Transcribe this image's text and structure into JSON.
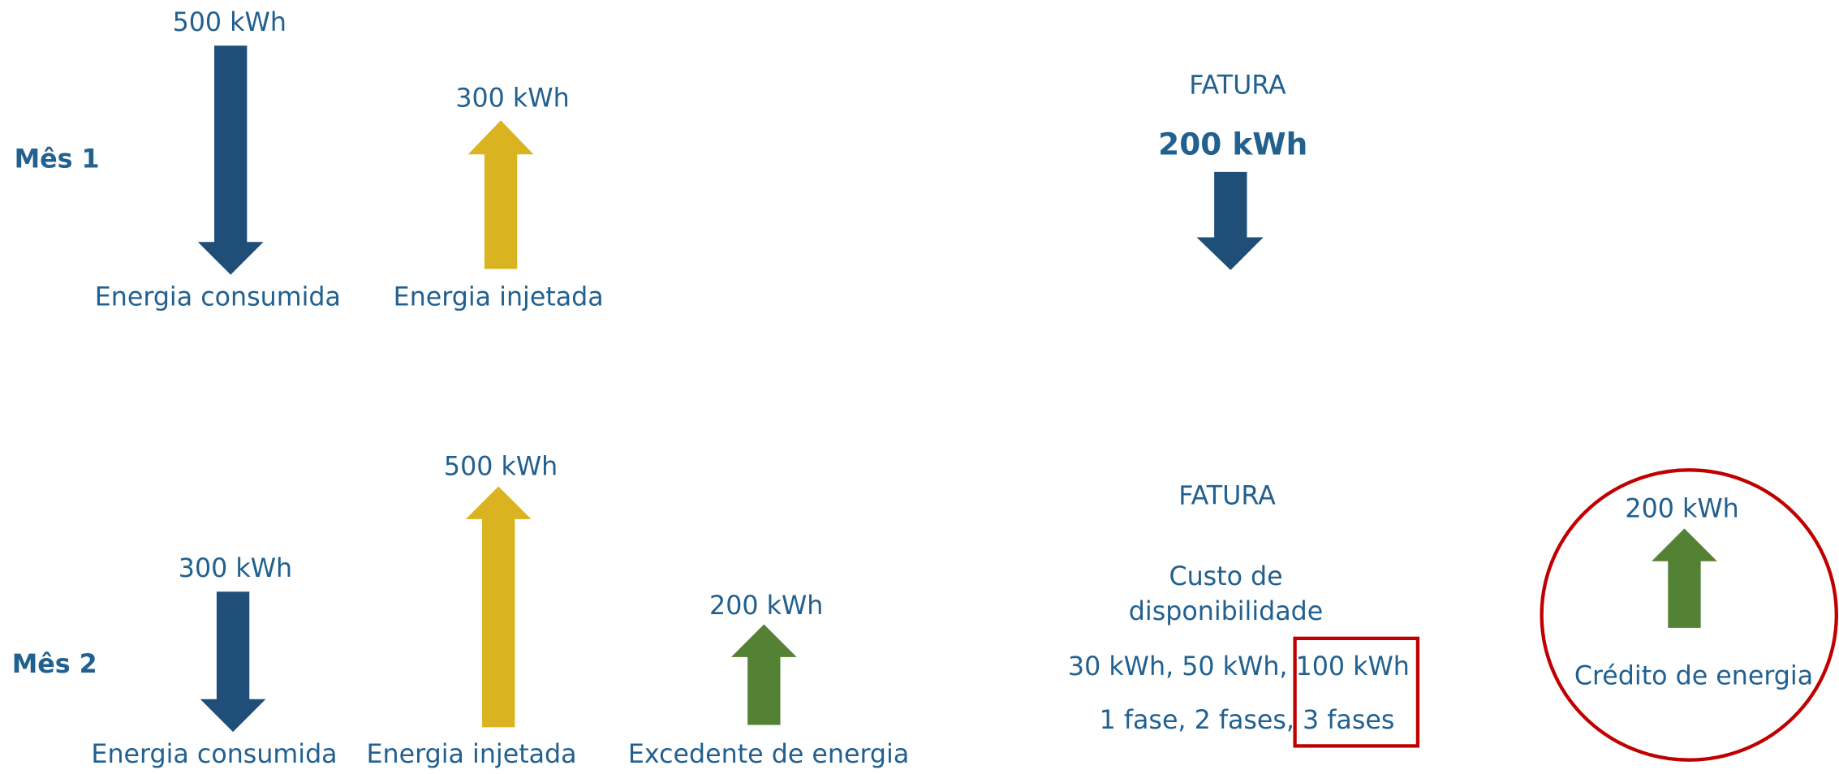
{
  "month1": {
    "label": "Mês 1",
    "consumed_value": "500 kWh",
    "consumed_label": "Energia consumida",
    "injected_value": "300 kWh",
    "injected_label": "Energia injetada",
    "invoice_title": "FATURA",
    "invoice_value": "200 kWh"
  },
  "month2": {
    "label": "Mês 2",
    "consumed_value": "300 kWh",
    "consumed_label": "Energia consumida",
    "injected_value": "500 kWh",
    "injected_label": "Energia injetada",
    "surplus_value": "200 kWh",
    "surplus_label": "Excedente de energia",
    "invoice_title": "FATURA",
    "cost_line1": "Custo de",
    "cost_line2": "disponibilidade",
    "cost_values": "30 kWh, 50 kWh, 100 kWh",
    "cost_phases": "1 fase, 2 fases, 3 fases",
    "credit_value": "200 kWh",
    "credit_label": "Crédito de energia"
  }
}
